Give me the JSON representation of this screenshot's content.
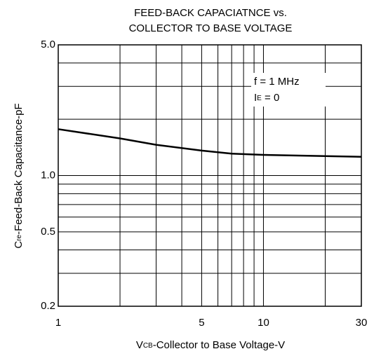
{
  "chart_data": {
    "type": "line",
    "title": [
      "FEED-BACK CAPACIATNCE vs.",
      "COLLECTOR TO BASE VOLTAGE"
    ],
    "xlabel": [
      "V",
      "CB",
      "-Collector to Base Voltage-V"
    ],
    "ylabel": [
      "C",
      "re",
      "-Feed-Back Capacitance-pF"
    ],
    "annotations": [
      [
        "f = 1 MHz"
      ],
      [
        "I",
        "E",
        " = 0"
      ]
    ],
    "xscale": "log",
    "yscale": "log",
    "grid": true,
    "xlim": [
      1,
      30
    ],
    "ylim": [
      0.2,
      5.0
    ],
    "xticks": [
      1,
      5,
      10,
      30
    ],
    "yticks": [
      {
        "value": 0.2,
        "label": "0.2"
      },
      {
        "value": 0.5,
        "label": "0.5"
      },
      {
        "value": 1.0,
        "label": "1.0"
      },
      {
        "value": 5.0,
        "label": "5.0"
      }
    ],
    "xminor_ticks": [
      2,
      3,
      4,
      6,
      7,
      8,
      9,
      20
    ],
    "yminor_ticks": [
      0.3,
      0.4,
      0.6,
      0.7,
      0.8,
      0.9,
      2,
      3,
      4
    ],
    "x": [
      1,
      2,
      3,
      5,
      7,
      10,
      20,
      30
    ],
    "series": [
      {
        "color": "#000000",
        "values": [
          1.77,
          1.58,
          1.46,
          1.36,
          1.31,
          1.29,
          1.27,
          1.26
        ]
      }
    ]
  }
}
